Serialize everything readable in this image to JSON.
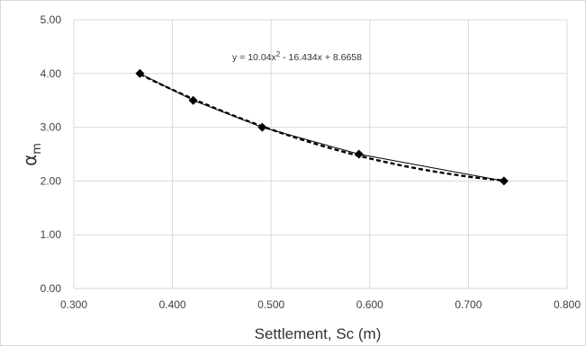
{
  "chart_data": {
    "type": "scatter",
    "title": "",
    "xlabel": "Settlement, Sc (m)",
    "ylabel_main": "α",
    "ylabel_sub": "m",
    "xlim": [
      0.3,
      0.8
    ],
    "ylim": [
      0.0,
      5.0
    ],
    "x_ticks": [
      0.3,
      0.4,
      0.5,
      0.6,
      0.7,
      0.8
    ],
    "y_ticks": [
      0.0,
      1.0,
      2.0,
      3.0,
      4.0,
      5.0
    ],
    "x_tick_labels": [
      "0.300",
      "0.400",
      "0.500",
      "0.600",
      "0.700",
      "0.800"
    ],
    "y_tick_labels": [
      "0.00",
      "1.00",
      "2.00",
      "3.00",
      "4.00",
      "5.00"
    ],
    "grid": true,
    "legend": "none",
    "series": [
      {
        "type": "scatter-line",
        "x": [
          0.367,
          0.421,
          0.491,
          0.589,
          0.736
        ],
        "y": [
          4.0,
          3.5,
          3.0,
          2.5,
          2.0
        ],
        "color": "#000000"
      }
    ],
    "trendline": {
      "type": "polynomial",
      "coefficients": [
        10.04,
        -16.434,
        8.6658
      ],
      "style": "dashed",
      "color": "#000000"
    },
    "equation": {
      "prefix": "y = 10.04x",
      "superscript": "2",
      "suffix": " - 16.434x + 8.6658"
    }
  }
}
